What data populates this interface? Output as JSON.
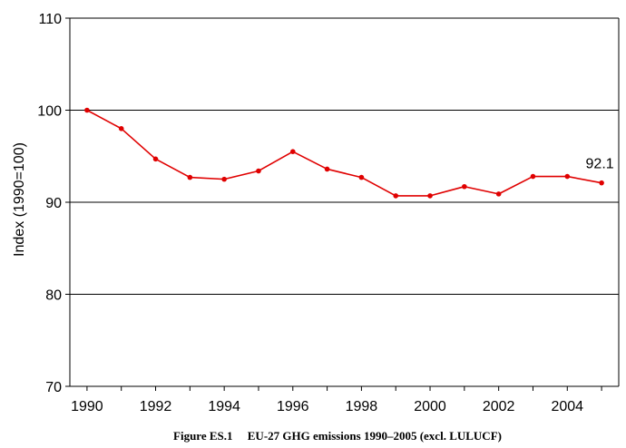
{
  "chart_data": {
    "type": "line",
    "title": "",
    "caption": "Figure ES.1     EU-27 GHG emissions 1990–2005 (excl. LULUCF)",
    "xlabel": "",
    "ylabel": "Index (1990=100)",
    "x": [
      1990,
      1991,
      1992,
      1993,
      1994,
      1995,
      1996,
      1997,
      1998,
      1999,
      2000,
      2001,
      2002,
      2003,
      2004,
      2005
    ],
    "x_ticks": [
      "1990",
      "1992",
      "1994",
      "1996",
      "1998",
      "2000",
      "2002",
      "2004"
    ],
    "y_ticks": [
      "70",
      "80",
      "90",
      "100",
      "110"
    ],
    "ylim": [
      70,
      110
    ],
    "xlim": [
      1989.5,
      2005.5
    ],
    "series": [
      {
        "name": "",
        "color": "#e00000",
        "values": [
          100.0,
          98.0,
          94.7,
          92.7,
          92.5,
          93.4,
          95.5,
          93.6,
          92.7,
          90.7,
          90.7,
          91.7,
          90.9,
          92.8,
          92.8,
          92.1
        ]
      }
    ],
    "annotations": [
      {
        "text": "92.1",
        "x": 2005,
        "y": 92.1
      }
    ],
    "grid": "horizontal",
    "legend": "none"
  }
}
